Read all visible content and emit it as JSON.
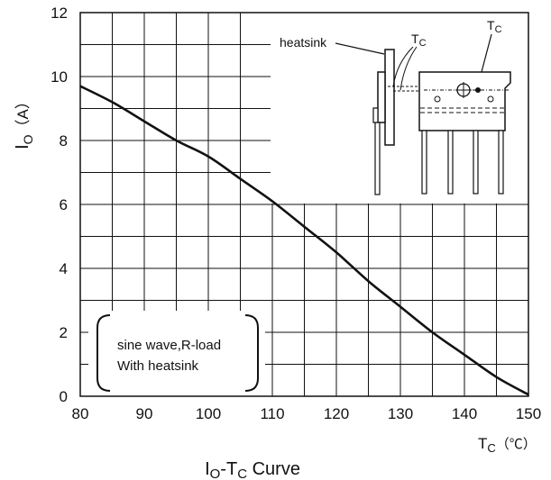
{
  "chart_data": {
    "type": "line",
    "title": "IO-TC Curve",
    "title_parts": {
      "main1": "I",
      "sub1": "O",
      "dash": "-T",
      "sub2": "C",
      "tail": " Curve"
    },
    "xlabel_parts": {
      "main": "T",
      "sub": "C",
      "unit": "（℃）"
    },
    "ylabel_parts": {
      "main": "I",
      "sub": "O",
      "unit": "（A）"
    },
    "xlim": [
      80,
      150
    ],
    "ylim": [
      0,
      12
    ],
    "x_ticks": [
      80,
      90,
      100,
      110,
      120,
      130,
      140,
      150
    ],
    "y_ticks": [
      0,
      2,
      4,
      6,
      8,
      10,
      12
    ],
    "grid": true,
    "series": [
      {
        "x": [
          80,
          85,
          90,
          95,
          100,
          105,
          110,
          115,
          120,
          125,
          130,
          135,
          140,
          145,
          150
        ],
        "y": [
          9.7,
          9.2,
          8.6,
          8.0,
          7.5,
          6.8,
          6.1,
          5.3,
          4.5,
          3.6,
          2.8,
          2.0,
          1.3,
          0.6,
          0.05
        ]
      }
    ],
    "annotations": {
      "condition_line1": "sine wave,R-load",
      "condition_line2": "With heatsink",
      "heatsink_label": "heatsink",
      "tc_label_main": "T",
      "tc_label_sub": "C"
    }
  },
  "colors": {
    "line": "#111111",
    "grid": "#111111",
    "background": "#ffffff"
  }
}
